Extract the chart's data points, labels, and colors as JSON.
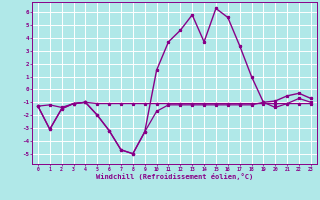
{
  "xlabel": "Windchill (Refroidissement éolien,°C)",
  "background_color": "#b0e8e8",
  "grid_color": "#ffffff",
  "line_color": "#880088",
  "xlim": [
    -0.5,
    23.5
  ],
  "ylim": [
    -5.8,
    6.8
  ],
  "xticks": [
    0,
    1,
    2,
    3,
    4,
    5,
    6,
    7,
    8,
    9,
    10,
    11,
    12,
    13,
    14,
    15,
    16,
    17,
    18,
    19,
    20,
    21,
    22,
    23
  ],
  "yticks": [
    -5,
    -4,
    -3,
    -2,
    -1,
    0,
    1,
    2,
    3,
    4,
    5,
    6
  ],
  "hours": [
    0,
    1,
    2,
    3,
    4,
    5,
    6,
    7,
    8,
    9,
    10,
    11,
    12,
    13,
    14,
    15,
    16,
    17,
    18,
    19,
    20,
    21,
    22,
    23
  ],
  "line1": [
    -1.3,
    -1.2,
    -1.4,
    -1.1,
    -1.0,
    -1.1,
    -1.1,
    -1.1,
    -1.1,
    -1.1,
    -1.1,
    -1.1,
    -1.1,
    -1.1,
    -1.1,
    -1.1,
    -1.1,
    -1.1,
    -1.1,
    -1.1,
    -1.1,
    -1.1,
    -1.1,
    -1.1
  ],
  "line2": [
    -1.3,
    -3.1,
    -1.5,
    -1.1,
    -1.0,
    -2.0,
    -3.2,
    -4.7,
    -5.0,
    -3.3,
    -1.7,
    -1.2,
    -1.2,
    -1.2,
    -1.2,
    -1.2,
    -1.2,
    -1.2,
    -1.2,
    -1.0,
    -1.4,
    -1.1,
    -0.7,
    -1.0
  ],
  "line3": [
    -1.3,
    -3.1,
    -1.5,
    -1.1,
    -1.0,
    -2.0,
    -3.2,
    -4.7,
    -5.0,
    -3.3,
    1.5,
    3.7,
    4.6,
    5.8,
    3.7,
    6.3,
    5.6,
    3.4,
    1.0,
    -1.0,
    -0.9,
    -0.5,
    -0.3,
    -0.7
  ]
}
